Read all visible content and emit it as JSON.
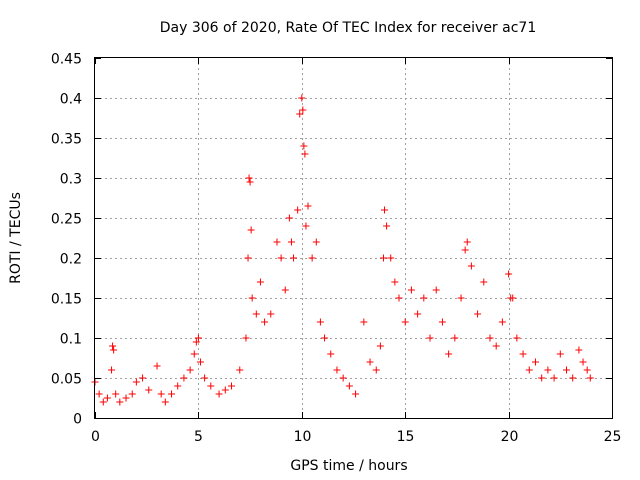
{
  "chart_data": {
    "type": "scatter",
    "title": "Day 306 of 2020, Rate Of TEC Index for receiver ac71",
    "xlabel": "GPS time / hours",
    "ylabel": "ROTI / TECUs",
    "xlim": [
      0,
      25
    ],
    "ylim": [
      0,
      0.45
    ],
    "xticks": [
      0,
      5,
      10,
      15,
      20,
      25
    ],
    "xtick_labels": [
      "0",
      "5",
      "10",
      "15",
      "20",
      "25"
    ],
    "yticks": [
      0,
      0.05,
      0.1,
      0.15,
      0.2,
      0.25,
      0.3,
      0.35,
      0.4,
      0.45
    ],
    "ytick_labels": [
      "0",
      "0.05",
      "0.1",
      "0.15",
      "0.2",
      "0.25",
      "0.3",
      "0.35",
      "0.4",
      "0.45"
    ],
    "grid": true,
    "marker": "+",
    "color": "#ff0000",
    "series": [
      {
        "name": "ROTI",
        "x": [
          0.0,
          0.2,
          0.4,
          0.6,
          0.8,
          0.85,
          0.9,
          1.0,
          1.2,
          1.5,
          1.8,
          2.0,
          2.3,
          2.6,
          3.0,
          3.2,
          3.4,
          3.7,
          4.0,
          4.3,
          4.6,
          4.8,
          4.9,
          5.0,
          5.1,
          5.3,
          5.6,
          6.0,
          6.3,
          6.6,
          7.0,
          7.3,
          7.4,
          7.45,
          7.5,
          7.55,
          7.6,
          7.8,
          8.0,
          8.2,
          8.5,
          8.8,
          9.0,
          9.2,
          9.4,
          9.5,
          9.6,
          9.8,
          9.9,
          10.0,
          10.05,
          10.1,
          10.15,
          10.2,
          10.3,
          10.5,
          10.7,
          10.9,
          11.1,
          11.4,
          11.7,
          12.0,
          12.3,
          12.6,
          13.0,
          13.3,
          13.6,
          13.8,
          13.95,
          14.0,
          14.1,
          14.3,
          14.5,
          14.7,
          15.0,
          15.3,
          15.6,
          15.9,
          16.2,
          16.5,
          16.8,
          17.1,
          17.4,
          17.7,
          17.9,
          18.0,
          18.2,
          18.5,
          18.8,
          19.1,
          19.4,
          19.7,
          20.0,
          20.1,
          20.2,
          20.4,
          20.7,
          21.0,
          21.3,
          21.6,
          21.9,
          22.2,
          22.5,
          22.8,
          23.1,
          23.4,
          23.6,
          23.8,
          23.95
        ],
        "y": [
          0.045,
          0.03,
          0.02,
          0.025,
          0.06,
          0.09,
          0.085,
          0.03,
          0.02,
          0.025,
          0.03,
          0.045,
          0.05,
          0.035,
          0.065,
          0.03,
          0.02,
          0.03,
          0.04,
          0.05,
          0.06,
          0.08,
          0.095,
          0.1,
          0.07,
          0.05,
          0.04,
          0.03,
          0.035,
          0.04,
          0.06,
          0.1,
          0.2,
          0.3,
          0.295,
          0.235,
          0.15,
          0.13,
          0.17,
          0.12,
          0.13,
          0.22,
          0.2,
          0.16,
          0.25,
          0.22,
          0.2,
          0.26,
          0.38,
          0.4,
          0.385,
          0.34,
          0.33,
          0.24,
          0.265,
          0.2,
          0.22,
          0.12,
          0.1,
          0.08,
          0.06,
          0.05,
          0.04,
          0.03,
          0.12,
          0.07,
          0.06,
          0.09,
          0.2,
          0.26,
          0.24,
          0.2,
          0.17,
          0.15,
          0.12,
          0.16,
          0.13,
          0.15,
          0.1,
          0.16,
          0.12,
          0.08,
          0.1,
          0.15,
          0.21,
          0.22,
          0.19,
          0.13,
          0.17,
          0.1,
          0.09,
          0.12,
          0.18,
          0.15,
          0.15,
          0.1,
          0.08,
          0.06,
          0.07,
          0.05,
          0.06,
          0.05,
          0.08,
          0.06,
          0.05,
          0.085,
          0.07,
          0.06,
          0.05
        ]
      }
    ]
  }
}
